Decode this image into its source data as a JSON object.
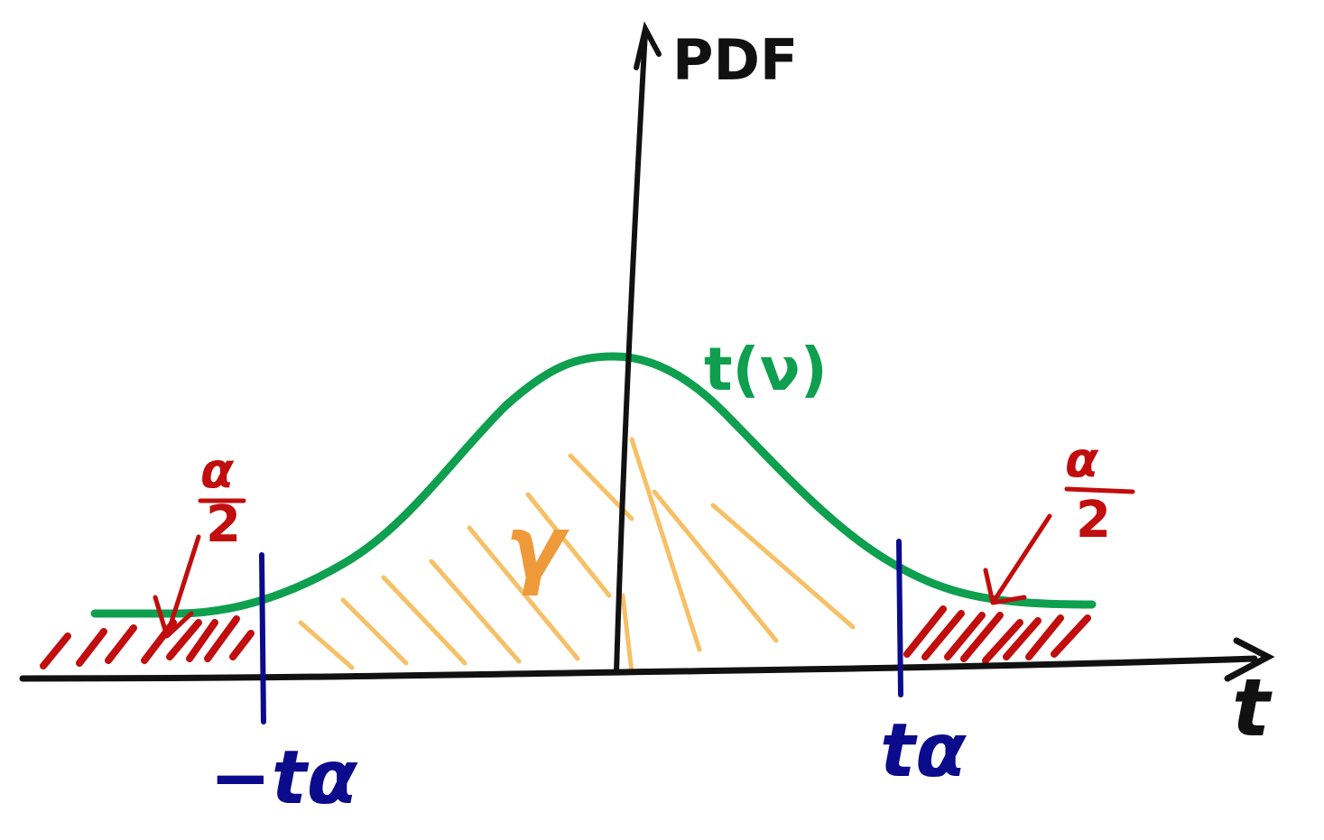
{
  "labels": {
    "y_axis": "PDF",
    "x_axis": "t",
    "curve": "t(ν)",
    "left_crit": "−tα",
    "right_crit": "tα",
    "center_region": "γ",
    "left_tail_num": "α",
    "left_tail_den": "2",
    "right_tail_num": "α",
    "right_tail_den": "2"
  },
  "colors": {
    "axis": "#111111",
    "curve": "#0e9f4f",
    "critical": "#0b0b8c",
    "tail": "#c10d0d",
    "center_hatch": "#f6c067",
    "gamma": "#ef9a3a"
  }
}
